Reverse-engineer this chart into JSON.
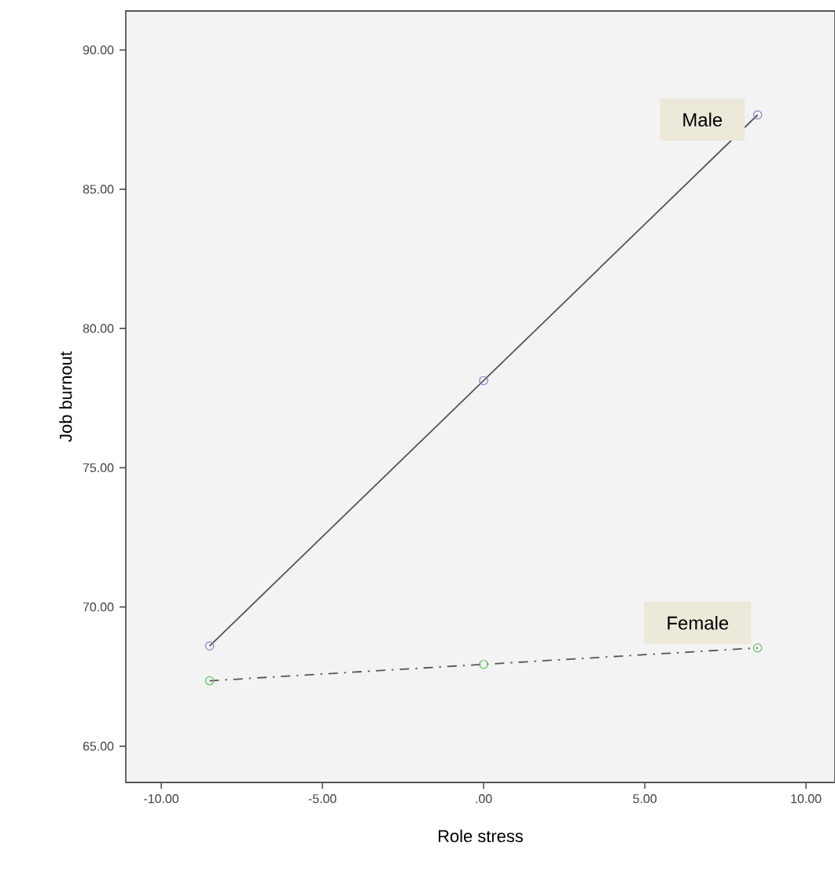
{
  "chart_data": {
    "type": "line",
    "xlabel": "Role stress",
    "ylabel": "Job burnout",
    "x": [
      -8.5,
      0,
      8.5
    ],
    "series": [
      {
        "name": "Male",
        "color": "#8080d0",
        "values": [
          68.6,
          78.13,
          87.67
        ],
        "line_style": "solid"
      },
      {
        "name": "Female",
        "color": "#5cc05c",
        "values": [
          67.35,
          67.94,
          68.53
        ],
        "line_style": "dashed"
      }
    ],
    "marker": "circle",
    "xlim": [
      -11.1,
      10.9
    ],
    "ylim": [
      63.7,
      91.4
    ],
    "xticks": [
      {
        "value": -10,
        "label": "-10.00"
      },
      {
        "value": -5,
        "label": "-5.00"
      },
      {
        "value": 0,
        "label": ".00"
      },
      {
        "value": 5,
        "label": "5.00"
      },
      {
        "value": 10,
        "label": "10.00"
      }
    ],
    "yticks": [
      {
        "value": 65,
        "label": "65.00"
      },
      {
        "value": 70,
        "label": "70.00"
      },
      {
        "value": 75,
        "label": "75.00"
      },
      {
        "value": 80,
        "label": "80.00"
      },
      {
        "value": 85,
        "label": "85.00"
      },
      {
        "value": 90,
        "label": "90.00"
      }
    ],
    "grid": false,
    "legend": false
  }
}
